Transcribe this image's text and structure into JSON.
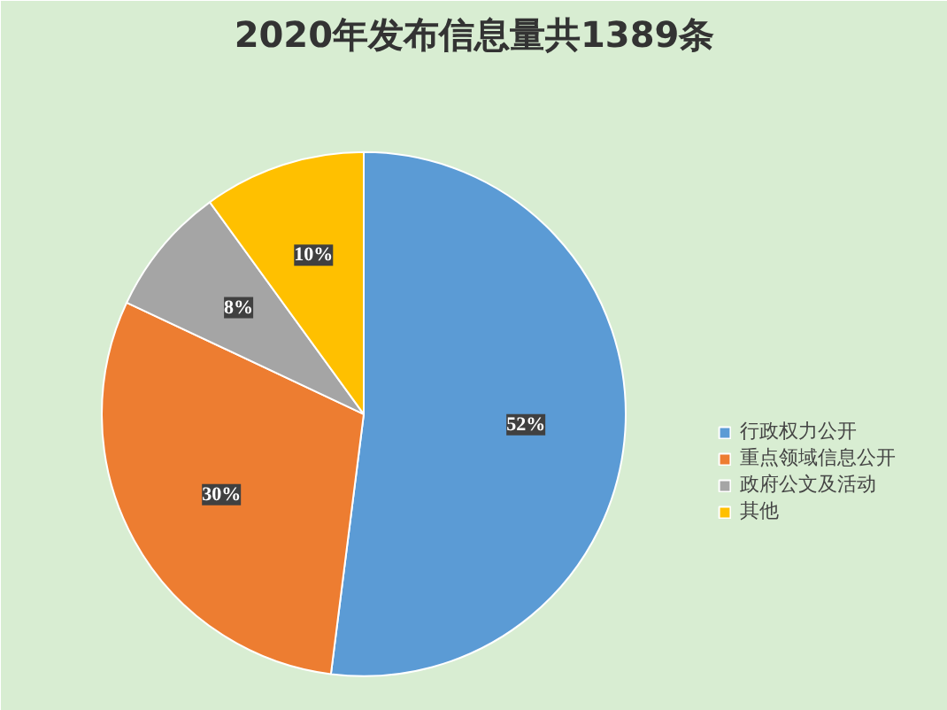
{
  "chart_data": {
    "type": "pie",
    "title": "2020年发布信息量共1389条",
    "categories": [
      "行政权力公开",
      "重点领域信息公开",
      "政府公文及活动",
      "其他"
    ],
    "values": [
      52,
      30,
      8,
      10
    ],
    "colors": [
      "#5b9bd5",
      "#ed7d31",
      "#a5a5a5",
      "#ffc000"
    ],
    "value_labels": [
      "52%",
      "30%",
      "8%",
      "10%"
    ],
    "legend": "right"
  }
}
